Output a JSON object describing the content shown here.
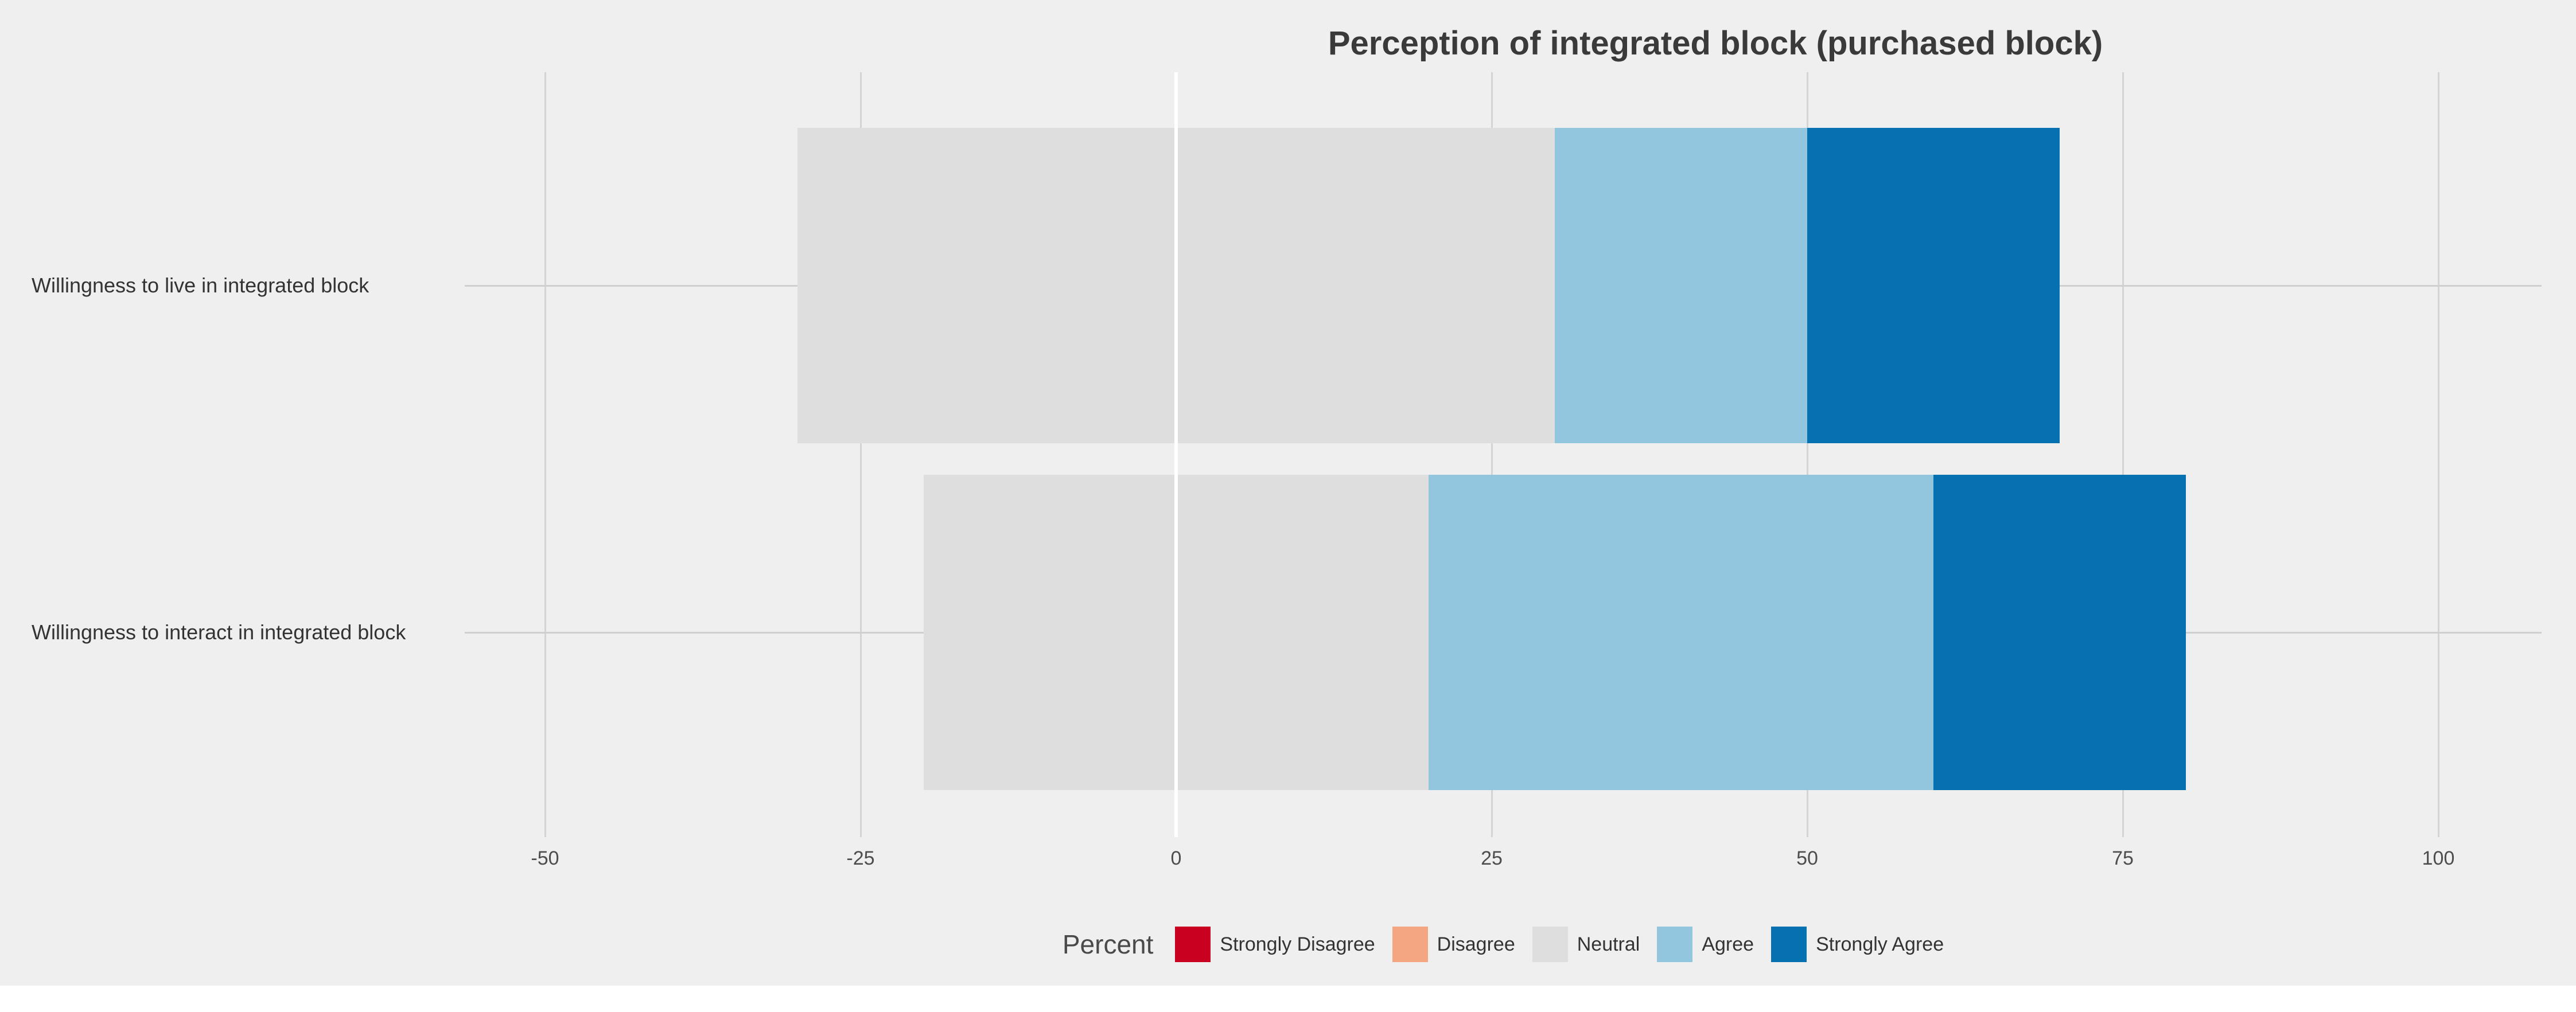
{
  "title": "Perception of integrated block (purchased block)",
  "legend": {
    "label": "Percent",
    "items": [
      {
        "label": "Strongly Disagree",
        "color": "#CA0020"
      },
      {
        "label": "Disagree",
        "color": "#F4A582"
      },
      {
        "label": "Neutral",
        "color": "#DEDEDE"
      },
      {
        "label": "Agree",
        "color": "#92C5DE"
      },
      {
        "label": "Strongly Agree",
        "color": "#0571B0"
      }
    ]
  },
  "colors": {
    "background": "#EFEFEF",
    "gridline": "#D4D4D4",
    "zero_line": "#FFFFFF",
    "title_text": "#3A3A3A",
    "axis_text": "#4D4D4D"
  },
  "chart_data": {
    "type": "bar",
    "subtype": "diverging-stacked-likert",
    "orientation": "horizontal",
    "title": "Perception of integrated block (purchased block)",
    "categories": [
      "Willingness to live in integrated block",
      "Willingness to interact in integrated block"
    ],
    "series": [
      {
        "name": "Strongly Disagree",
        "color": "#CA0020",
        "values": [
          0,
          0
        ]
      },
      {
        "name": "Disagree",
        "color": "#F4A582",
        "values": [
          0,
          0
        ]
      },
      {
        "name": "Neutral",
        "color": "#DEDEDE",
        "values": [
          60,
          40
        ]
      },
      {
        "name": "Agree",
        "color": "#92C5DE",
        "values": [
          20,
          40
        ]
      },
      {
        "name": "Strongly Agree",
        "color": "#0571B0",
        "values": [
          20,
          20
        ]
      }
    ],
    "segment_spans_percent": {
      "Willingness to live in integrated block": {
        "Neutral": [
          -30,
          30
        ],
        "Agree": [
          30,
          50
        ],
        "Strongly Agree": [
          50,
          70
        ]
      },
      "Willingness to interact in integrated block": {
        "Neutral": [
          -20,
          20
        ],
        "Agree": [
          20,
          60
        ],
        "Strongly Agree": [
          60,
          80
        ]
      }
    },
    "x_ticks": [
      -50,
      -25,
      0,
      25,
      50,
      75,
      100
    ],
    "x_tick_labels": [
      "-50",
      "-25",
      "0",
      "25",
      "50",
      "75",
      "100"
    ],
    "xlim": [
      -56,
      108
    ],
    "xlabel": "Percent",
    "grid": true,
    "neutral_centered_on_zero": true,
    "legend_position": "bottom"
  }
}
